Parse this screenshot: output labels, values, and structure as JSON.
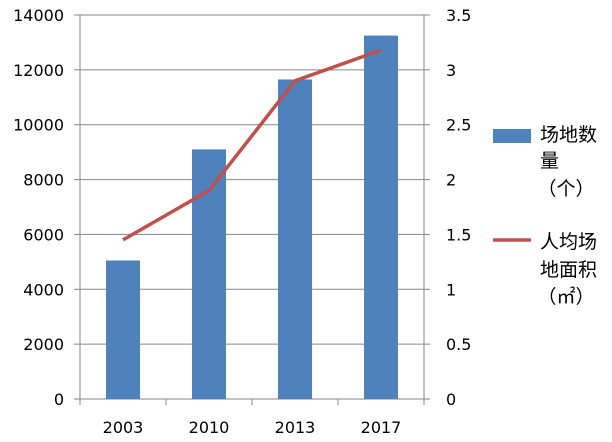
{
  "chart_data": {
    "type": "bar",
    "categories": [
      "2003",
      "2010",
      "2013",
      "2017"
    ],
    "series": [
      {
        "name": "场地数量（个）",
        "type": "bar",
        "axis": "left",
        "color": "#4F81BD",
        "values": [
          5050,
          9100,
          11650,
          13250
        ]
      },
      {
        "name": "人均场地面积（㎡）",
        "type": "line",
        "axis": "right",
        "color": "#C0504D",
        "values": [
          1.45,
          1.9,
          2.9,
          3.18
        ]
      }
    ],
    "y_left": {
      "ylim": [
        0,
        14000
      ],
      "ticks": [
        "0",
        "2000",
        "4000",
        "6000",
        "8000",
        "10000",
        "12000",
        "14000"
      ]
    },
    "y_right": {
      "ylim": [
        0,
        3.5
      ],
      "ticks": [
        "0",
        "0.5",
        "1",
        "1.5",
        "2",
        "2.5",
        "3",
        "3.5"
      ]
    },
    "grid": true,
    "legend": {
      "placement": "right",
      "bar_label_lines": [
        "场地数",
        "量",
        "（个）"
      ],
      "line_label_lines": [
        "人均场",
        "地面积",
        "（㎡）"
      ]
    }
  }
}
